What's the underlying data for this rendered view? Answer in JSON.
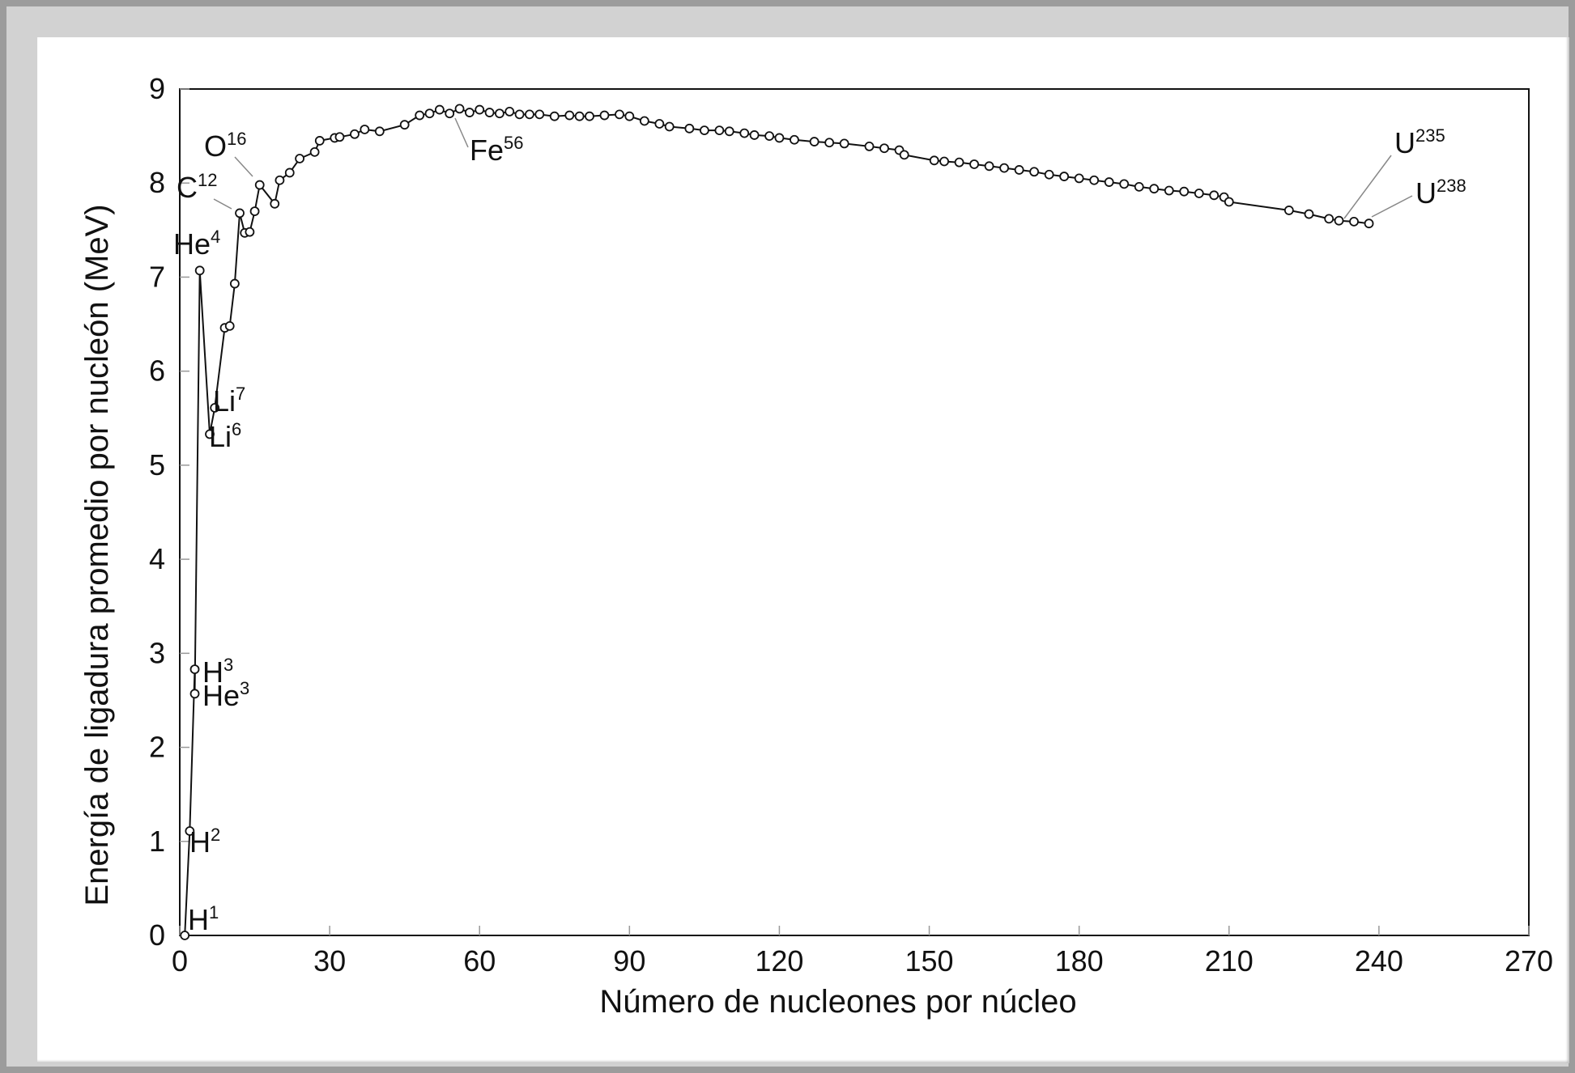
{
  "chart_data": {
    "type": "line",
    "title": "",
    "xlabel": "Número de nucleones por núcleo",
    "ylabel": "Energía de ligadura promedio por nucleón (MeV)",
    "xlim": [
      0,
      270
    ],
    "ylim": [
      0,
      9
    ],
    "xticks": [
      0,
      30,
      60,
      90,
      120,
      150,
      180,
      210,
      240,
      270
    ],
    "yticks": [
      0,
      1,
      2,
      3,
      4,
      5,
      6,
      7,
      8,
      9
    ],
    "grid": false,
    "legend": "none",
    "colors": {
      "line": "#111111",
      "marker_fill": "#ffffff"
    },
    "series": [
      {
        "x": [
          1,
          2,
          3,
          3,
          4,
          6,
          7,
          9,
          10,
          11,
          12,
          13,
          14,
          15,
          16,
          19,
          20,
          22,
          24,
          27,
          28,
          31,
          32,
          35,
          37,
          40,
          45,
          48,
          50,
          52,
          54,
          56,
          58,
          60,
          62,
          64,
          66,
          68,
          70,
          72,
          75,
          78,
          80,
          82,
          85,
          88,
          90,
          93,
          96,
          98,
          102,
          105,
          108,
          110,
          113,
          115,
          118,
          120,
          123,
          127,
          130,
          133,
          138,
          141,
          144,
          145,
          151,
          153,
          156,
          159,
          162,
          165,
          168,
          171,
          174,
          177,
          180,
          183,
          186,
          189,
          192,
          195,
          198,
          201,
          204,
          207,
          209,
          210,
          222,
          226,
          230,
          232,
          235,
          238
        ],
        "y": [
          0,
          1.11,
          2.83,
          2.57,
          7.07,
          5.33,
          5.61,
          6.46,
          6.48,
          6.93,
          7.68,
          7.47,
          7.48,
          7.7,
          7.98,
          7.78,
          8.03,
          8.11,
          8.26,
          8.33,
          8.45,
          8.48,
          8.49,
          8.52,
          8.57,
          8.55,
          8.62,
          8.72,
          8.74,
          8.78,
          8.74,
          8.79,
          8.75,
          8.78,
          8.75,
          8.74,
          8.76,
          8.73,
          8.73,
          8.73,
          8.71,
          8.72,
          8.71,
          8.71,
          8.72,
          8.73,
          8.71,
          8.66,
          8.63,
          8.6,
          8.58,
          8.56,
          8.56,
          8.55,
          8.53,
          8.51,
          8.5,
          8.48,
          8.46,
          8.44,
          8.43,
          8.42,
          8.39,
          8.37,
          8.35,
          8.3,
          8.24,
          8.23,
          8.22,
          8.2,
          8.18,
          8.16,
          8.14,
          8.12,
          8.09,
          8.07,
          8.05,
          8.03,
          8.01,
          7.99,
          7.96,
          7.94,
          7.92,
          7.91,
          7.89,
          7.87,
          7.85,
          7.8,
          7.71,
          7.67,
          7.62,
          7.6,
          7.59,
          7.57
        ]
      }
    ],
    "annotations": [
      {
        "base": "H",
        "sup": "1"
      },
      {
        "base": "H",
        "sup": "2"
      },
      {
        "base": "H",
        "sup": "3"
      },
      {
        "base": "He",
        "sup": "3"
      },
      {
        "base": "He",
        "sup": "4"
      },
      {
        "base": "Li",
        "sup": "7"
      },
      {
        "base": "Li",
        "sup": "6"
      },
      {
        "base": "C",
        "sup": "12"
      },
      {
        "base": "O",
        "sup": "16"
      },
      {
        "base": "Fe",
        "sup": "56"
      },
      {
        "base": "U",
        "sup": "235"
      },
      {
        "base": "U",
        "sup": "238"
      }
    ]
  }
}
